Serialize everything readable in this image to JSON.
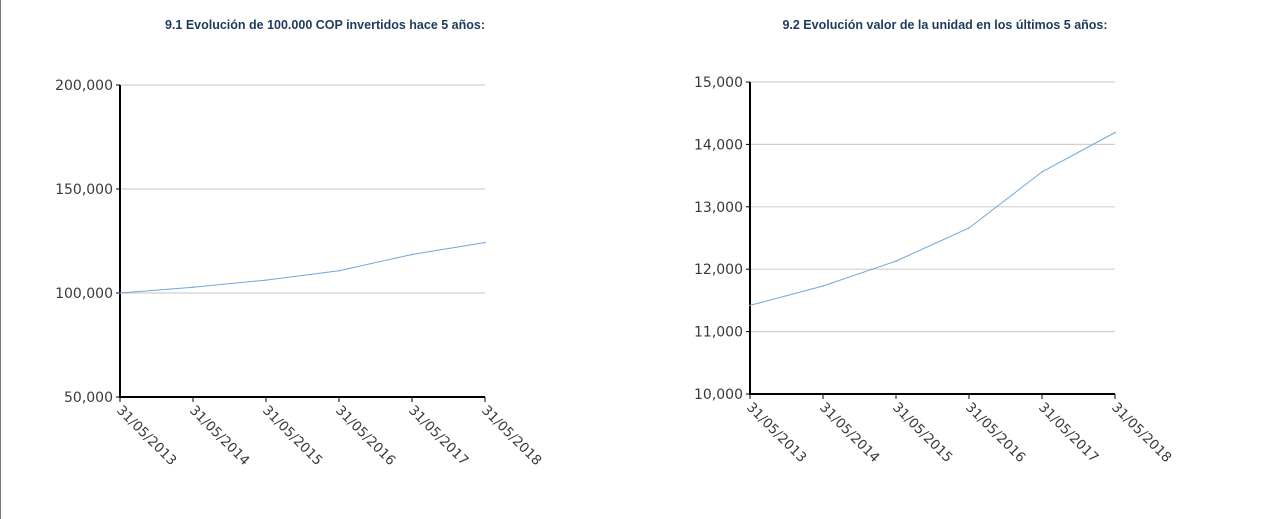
{
  "chart_data": [
    {
      "type": "line",
      "title": "9.1 Evolución de 100.000 COP invertidos hace 5 años:",
      "x": [
        "31/05/2013",
        "31/05/2014",
        "31/05/2015",
        "31/05/2016",
        "31/05/2017",
        "31/05/2018"
      ],
      "y_ticks": [
        "50,000",
        "100,000",
        "150,000",
        "200,000"
      ],
      "ylim": [
        50000,
        200000
      ],
      "grid": true,
      "series": [
        {
          "values": [
            100000,
            102800,
            106200,
            110700,
            118500,
            124300
          ],
          "color": "#6fa8dc"
        }
      ]
    },
    {
      "type": "line",
      "title": "9.2 Evolución valor de la unidad en los últimos 5 años:",
      "x": [
        "31/05/2013",
        "31/05/2014",
        "31/05/2015",
        "31/05/2016",
        "31/05/2017",
        "31/05/2018"
      ],
      "y_ticks": [
        "10,000",
        "11,000",
        "12,000",
        "13,000",
        "14,000",
        "15,000"
      ],
      "ylim": [
        10000,
        15000
      ],
      "grid": true,
      "series": [
        {
          "values": [
            11420,
            11730,
            12130,
            12660,
            13560,
            14190
          ],
          "color": "#6fa8dc"
        }
      ]
    }
  ]
}
